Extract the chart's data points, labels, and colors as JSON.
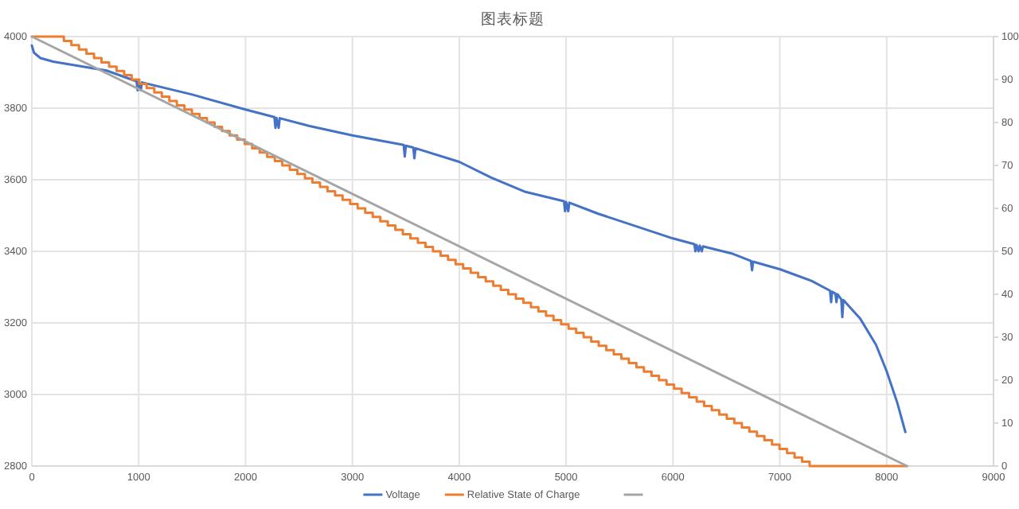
{
  "chart_data": {
    "type": "line",
    "title": "图表标题",
    "xlim": [
      0,
      9000
    ],
    "xticks": [
      0,
      1000,
      2000,
      3000,
      4000,
      5000,
      6000,
      7000,
      8000,
      9000
    ],
    "ylim": [
      2800,
      4000
    ],
    "yticks": [
      2800,
      3000,
      3200,
      3400,
      3600,
      3800,
      4000
    ],
    "y2lim": [
      0,
      100
    ],
    "y2ticks": [
      0,
      10,
      20,
      30,
      40,
      50,
      60,
      70,
      80,
      90,
      100
    ],
    "grid": true,
    "legend": "bottom",
    "marker": "none",
    "line_style": "solid",
    "series": [
      {
        "name": "Voltage",
        "type": "line",
        "color": "#4472c4",
        "x": [
          0,
          20,
          80,
          200,
          400,
          700,
          980,
          990,
          1000,
          1020,
          1030,
          1500,
          2000,
          2270,
          2280,
          2290,
          2310,
          2320,
          2600,
          3000,
          3480,
          3490,
          3500,
          3570,
          3580,
          3590,
          4000,
          4300,
          4620,
          4980,
          4990,
          5000,
          5020,
          5030,
          5300,
          6000,
          6200,
          6210,
          6220,
          6240,
          6250,
          6270,
          6280,
          6550,
          6730,
          6740,
          6750,
          7000,
          7300,
          7470,
          7480,
          7490,
          7520,
          7530,
          7540,
          7575,
          7585,
          7595,
          7750,
          7900,
          8000,
          8100,
          8175
        ],
        "values": [
          3975,
          3955,
          3940,
          3930,
          3920,
          3905,
          3875,
          3850,
          3873,
          3850,
          3872,
          3838,
          3796,
          3775,
          3745,
          3773,
          3745,
          3772,
          3750,
          3724,
          3697,
          3665,
          3695,
          3690,
          3660,
          3688,
          3650,
          3606,
          3566,
          3540,
          3512,
          3538,
          3512,
          3536,
          3505,
          3436,
          3420,
          3400,
          3418,
          3400,
          3416,
          3400,
          3414,
          3394,
          3373,
          3347,
          3371,
          3350,
          3317,
          3290,
          3258,
          3287,
          3282,
          3258,
          3280,
          3266,
          3216,
          3264,
          3213,
          3139,
          3065,
          2976,
          2895
        ]
      },
      {
        "name": "Relative State of Charge",
        "type": "step",
        "axis": "y2",
        "color": "#ed7d31",
        "x": [
          0,
          300,
          370,
          441,
          511,
          582,
          652,
          723,
          793,
          864,
          934,
          1005,
          1075,
          1146,
          1216,
          1287,
          1357,
          1428,
          1498,
          1569,
          1639,
          1710,
          1780,
          1851,
          1921,
          1992,
          2062,
          2133,
          2203,
          2274,
          2344,
          2415,
          2485,
          2556,
          2626,
          2697,
          2767,
          2838,
          2908,
          2979,
          3049,
          3120,
          3190,
          3261,
          3331,
          3402,
          3472,
          3543,
          3613,
          3684,
          3754,
          3825,
          3895,
          3966,
          4036,
          4107,
          4177,
          4248,
          4318,
          4389,
          4459,
          4530,
          4600,
          4671,
          4741,
          4812,
          4882,
          4953,
          5023,
          5094,
          5164,
          5235,
          5305,
          5376,
          5446,
          5517,
          5587,
          5658,
          5728,
          5799,
          5869,
          5940,
          6010,
          6081,
          6151,
          6222,
          6292,
          6363,
          6433,
          6504,
          6574,
          6645,
          6715,
          6786,
          6856,
          6927,
          6997,
          7068,
          7138,
          7209,
          7279,
          8190
        ],
        "values": [
          100,
          99,
          98,
          97,
          96,
          95,
          94,
          93,
          92,
          91,
          90,
          89,
          88,
          87,
          86,
          85,
          84,
          83,
          82,
          81,
          80,
          79,
          78,
          77,
          76,
          75,
          74,
          73,
          72,
          71,
          70,
          69,
          68,
          67,
          66,
          65,
          64,
          63,
          62,
          61,
          60,
          59,
          58,
          57,
          56,
          55,
          54,
          53,
          52,
          51,
          50,
          49,
          48,
          47,
          46,
          45,
          44,
          43,
          42,
          41,
          40,
          39,
          38,
          37,
          36,
          35,
          34,
          33,
          32,
          31,
          30,
          29,
          28,
          27,
          26,
          25,
          24,
          23,
          22,
          21,
          20,
          19,
          18,
          17,
          16,
          15,
          14,
          13,
          12,
          11,
          10,
          9,
          8,
          7,
          6,
          5,
          4,
          3,
          2,
          1,
          0,
          0
        ]
      },
      {
        "type": "line",
        "axis": "y2",
        "color": "#a5a5a5",
        "x": [
          0,
          8190
        ],
        "values": [
          100,
          0
        ]
      }
    ]
  }
}
